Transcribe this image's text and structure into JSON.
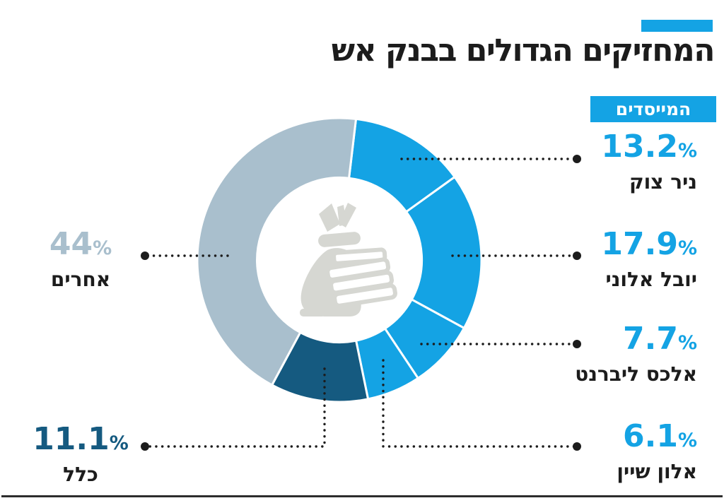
{
  "page": {
    "title": "המחזיקים הגדולים בבנק אש"
  },
  "colors": {
    "accent": "#14a3e4",
    "navy": "#155a80",
    "muted": "#a9bfcd",
    "ink": "#1c1c1c",
    "icon": "#d6d7d2"
  },
  "chart_data": {
    "type": "pie",
    "subtype": "donut",
    "title": "המחזיקים הגדולים בבנק אש",
    "legend": [
      {
        "label": "המייסדים",
        "color": "#14a3e4",
        "position": "top-right"
      }
    ],
    "start_angle_deg": 6.7,
    "clockwise": true,
    "inner_radius_ratio": 0.58,
    "center_icon": "money-bag-icon",
    "segments": [
      {
        "label": "ניר צוק",
        "value": 13.2,
        "pct_text": "13.2",
        "unit": "%",
        "color": "#14a3e4",
        "group": "המייסדים"
      },
      {
        "label": "יובל אלוני",
        "value": 17.9,
        "pct_text": "17.9",
        "unit": "%",
        "color": "#14a3e4",
        "group": "המייסדים"
      },
      {
        "label": "אלכס ליברנט",
        "value": 7.7,
        "pct_text": "7.7",
        "unit": "%",
        "color": "#14a3e4",
        "group": "המייסדים"
      },
      {
        "label": "אלון שיין",
        "value": 6.1,
        "pct_text": "6.1",
        "unit": "%",
        "color": "#14a3e4",
        "group": "המייסדים"
      },
      {
        "label": "כלל",
        "value": 11.1,
        "pct_text": "11.1",
        "unit": "%",
        "color": "#155a80"
      },
      {
        "label": "אחרים",
        "value": 44,
        "pct_text": "44",
        "unit": "%",
        "color": "#a9bfcd"
      }
    ]
  }
}
